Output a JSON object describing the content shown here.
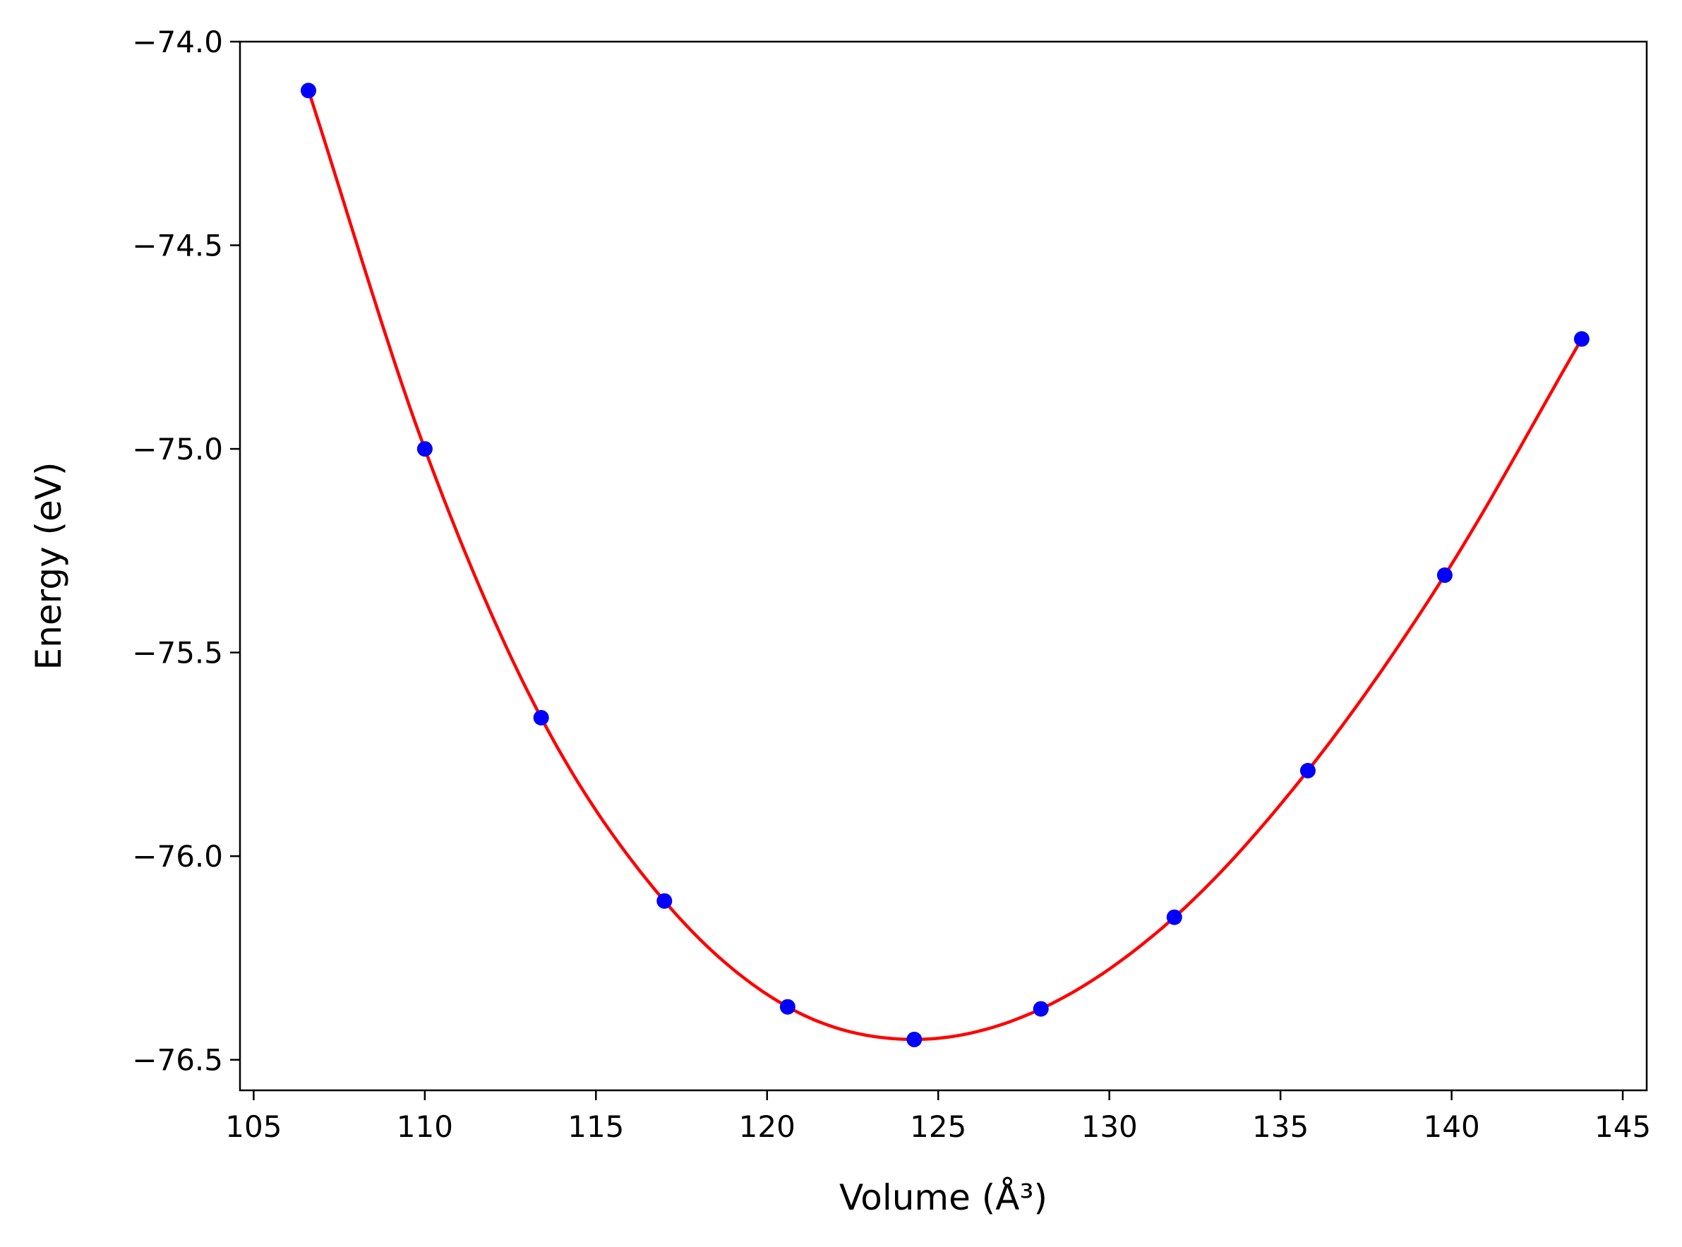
{
  "chart_data": {
    "type": "scatter",
    "title": "",
    "xlabel": "Volume (Å³)",
    "ylabel": "Energy (eV)",
    "xlim": [
      104.6,
      145.7
    ],
    "ylim": [
      -76.575,
      -74.0
    ],
    "xticks": [
      105,
      110,
      115,
      120,
      125,
      130,
      135,
      140,
      145
    ],
    "yticks": [
      -74.0,
      -74.5,
      -75.0,
      -75.5,
      -76.0,
      -76.5
    ],
    "xtick_labels": [
      "105",
      "110",
      "115",
      "120",
      "125",
      "130",
      "135",
      "140",
      "145"
    ],
    "ytick_labels": [
      "−74.0",
      "−74.5",
      "−75.0",
      "−75.5",
      "−76.0",
      "−76.5"
    ],
    "grid": false,
    "series": [
      {
        "kind": "points",
        "color": "#0000ff",
        "x": [
          106.6,
          110.0,
          113.4,
          117.0,
          120.6,
          124.3,
          128.0,
          131.9,
          135.8,
          139.8,
          143.8
        ],
        "y": [
          -74.12,
          -75.0,
          -75.66,
          -76.11,
          -76.37,
          -76.45,
          -76.375,
          -76.15,
          -75.79,
          -75.31,
          -74.73
        ]
      },
      {
        "kind": "line",
        "color": "#ff0000",
        "x": [
          106.6,
          110.0,
          113.4,
          117.0,
          120.6,
          124.3,
          128.0,
          131.9,
          135.8,
          139.8,
          143.8
        ],
        "y": [
          -74.12,
          -75.0,
          -75.66,
          -76.11,
          -76.37,
          -76.45,
          -76.375,
          -76.15,
          -75.79,
          -75.31,
          -74.73
        ]
      }
    ]
  }
}
